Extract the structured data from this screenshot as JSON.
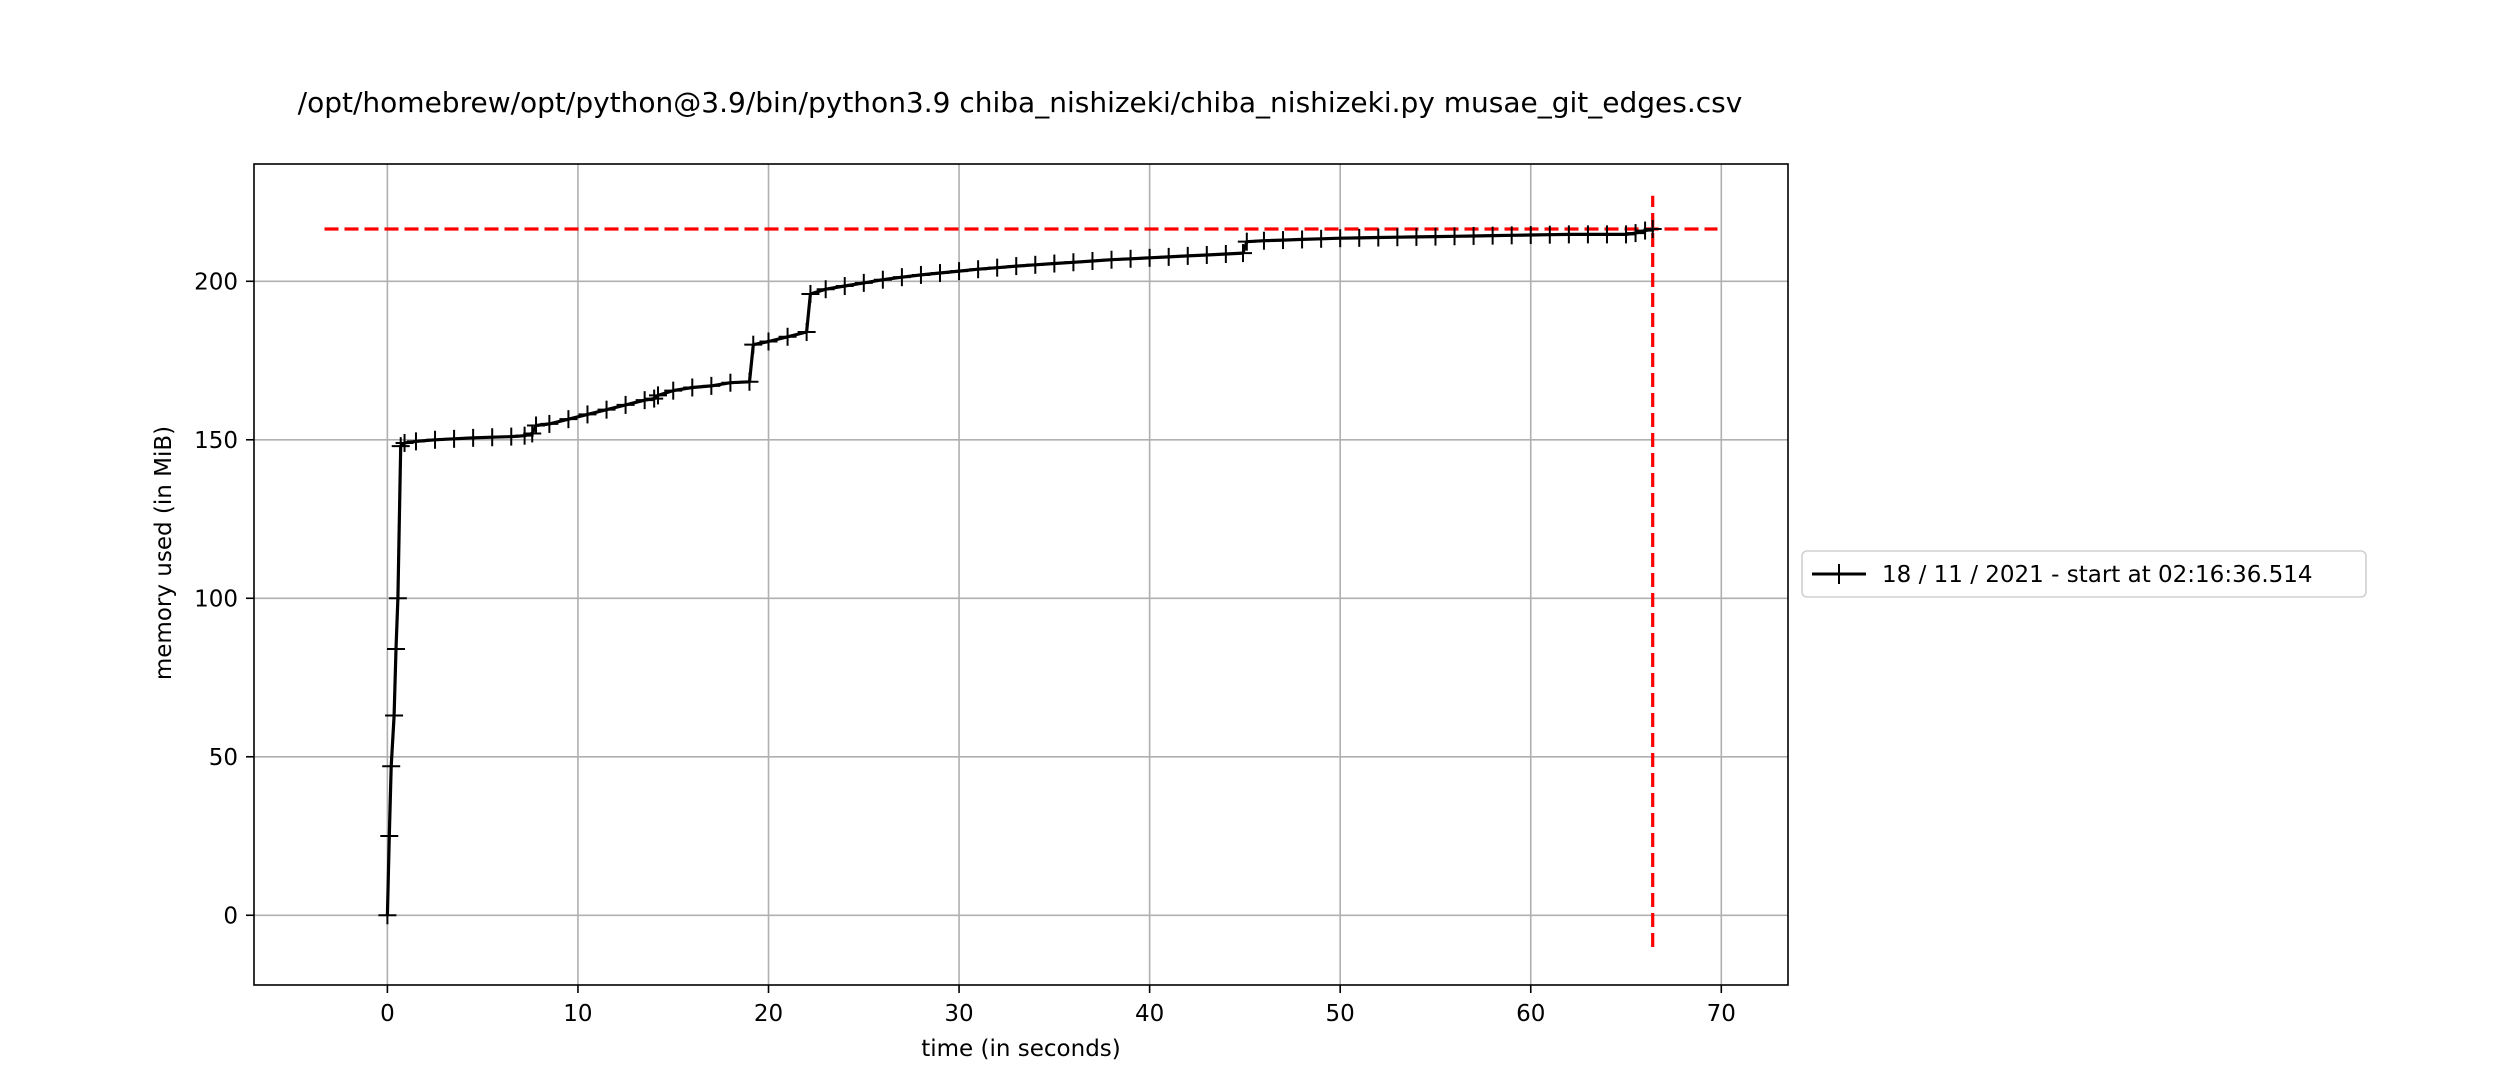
{
  "chart_data": {
    "type": "line",
    "title": "/opt/homebrew/opt/python@3.9/bin/python3.9 chiba_nishizeki/chiba_nishizeki.py musae_git_edges.csv",
    "xlabel": "time (in seconds)",
    "ylabel": "memory used (in MiB)",
    "xlim": [
      -7,
      73.5
    ],
    "ylim": [
      -22,
      237
    ],
    "xticks": [
      0,
      10,
      20,
      30,
      40,
      50,
      60,
      70
    ],
    "yticks": [
      0,
      50,
      100,
      150,
      200
    ],
    "grid": true,
    "legend_position": "outside-right",
    "series": [
      {
        "name": "18 / 11 / 2021 - start at 02:16:36.514",
        "color": "#000000",
        "marker": "plus",
        "x": [
          0,
          0.1,
          0.2,
          0.35,
          0.45,
          0.55,
          0.7,
          0.9,
          1.5,
          2.5,
          3.5,
          4.5,
          5.5,
          6.5,
          7.2,
          7.6,
          7.8,
          8.5,
          9.5,
          10.5,
          11.5,
          12.5,
          13.5,
          14.0,
          14.2,
          15,
          16,
          17,
          18,
          19.0,
          19.2,
          20,
          21,
          22.0,
          22.2,
          23,
          24,
          25,
          26,
          27,
          28,
          29,
          30,
          31,
          32,
          33,
          34,
          35,
          36,
          37,
          38,
          39,
          40,
          41,
          42,
          43,
          44,
          44.9,
          45.1,
          46,
          47,
          48,
          49,
          50,
          51,
          52,
          53,
          54,
          55,
          56,
          57,
          58,
          59,
          60,
          61,
          62,
          63,
          64,
          65,
          65.5,
          66.0,
          66.4
        ],
        "y": [
          0,
          25,
          47,
          63,
          84,
          100,
          148,
          149,
          149.5,
          150,
          150.3,
          150.6,
          150.8,
          151,
          151.3,
          152,
          154.5,
          155,
          156.5,
          158,
          159.5,
          161,
          162.5,
          163,
          164,
          165.5,
          166.5,
          167,
          168,
          168.3,
          180,
          181,
          182.5,
          184,
          196,
          197.5,
          198.5,
          199.5,
          200.5,
          201.3,
          202,
          202.6,
          203.2,
          203.8,
          204.3,
          204.8,
          205.2,
          205.6,
          206,
          206.4,
          206.8,
          207.1,
          207.4,
          207.7,
          208,
          208.3,
          208.6,
          208.9,
          212.5,
          212.8,
          213,
          213.2,
          213.4,
          213.6,
          213.7,
          213.8,
          213.9,
          214,
          214.1,
          214.2,
          214.3,
          214.4,
          214.5,
          214.6,
          214.7,
          214.8,
          214.8,
          214.8,
          214.8,
          215.2,
          216,
          216.5
        ]
      }
    ],
    "reference_lines": [
      {
        "orientation": "horizontal",
        "value": 216.5,
        "from": -3.3,
        "to": 69.8,
        "color": "#ff0000",
        "style": "dashed"
      },
      {
        "orientation": "vertical",
        "value": 66.4,
        "from": -10,
        "to": 227,
        "color": "#ff0000",
        "style": "dashed"
      }
    ],
    "colors": {
      "grid": "#b0b0b0",
      "axes": "#000000",
      "line": "#000000",
      "reference": "#ff0000"
    }
  }
}
